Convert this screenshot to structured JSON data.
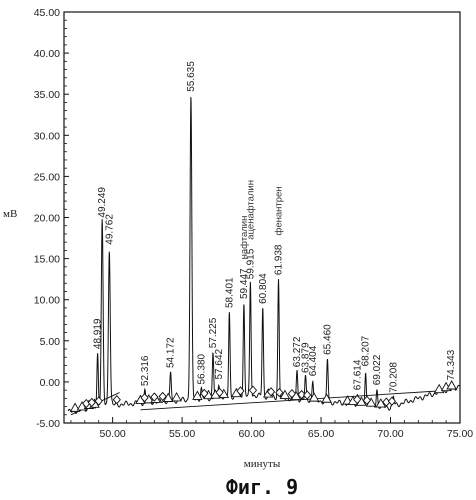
{
  "chart_data": {
    "type": "line",
    "ylabel": "мВ",
    "xlabel": "минуты",
    "caption": "Фиг. 9",
    "xlim": [
      46.5,
      75.0
    ],
    "ylim": [
      -5.0,
      45.0
    ],
    "x_ticks": [
      "50.00",
      "55.00",
      "60.00",
      "65.00",
      "70.00",
      "75.00"
    ],
    "y_ticks": [
      "45.00",
      "40.00",
      "35.00",
      "30.00",
      "25.00",
      "20.00",
      "15.00",
      "10.00",
      "5.00",
      "0.00",
      "-5.00"
    ],
    "x_tick_values": [
      50,
      55,
      60,
      65,
      70,
      75
    ],
    "y_tick_values": [
      45,
      40,
      35,
      30,
      25,
      20,
      15,
      10,
      5,
      0,
      -5
    ],
    "peaks": [
      {
        "t": 48.919,
        "h": 3.5,
        "label": "48.919"
      },
      {
        "t": 49.249,
        "h": 19.5,
        "label": "49.249"
      },
      {
        "t": 49.762,
        "h": 16.2,
        "label": "49.762"
      },
      {
        "t": 52.316,
        "h": -1.0,
        "label": "52.316"
      },
      {
        "t": 54.172,
        "h": 1.2,
        "label": "54.172"
      },
      {
        "t": 55.635,
        "h": 34.8,
        "label": "55.635"
      },
      {
        "t": 56.38,
        "h": -0.8,
        "label": "56.380"
      },
      {
        "t": 57.225,
        "h": 3.6,
        "label": "57.225"
      },
      {
        "t": 57.642,
        "h": -0.2,
        "label": "57.642"
      },
      {
        "t": 58.401,
        "h": 8.5,
        "label": "58.401"
      },
      {
        "t": 59.447,
        "h": 9.6,
        "label": "59.447",
        "compound": "нафталин"
      },
      {
        "t": 59.915,
        "h": 12.0,
        "label": "59.915",
        "compound": "аценафталин"
      },
      {
        "t": 60.804,
        "h": 9.0,
        "label": "60.804"
      },
      {
        "t": 61.938,
        "h": 12.5,
        "label": "61.938",
        "compound": "фенантрен"
      },
      {
        "t": 63.272,
        "h": 1.3,
        "label": "63.272"
      },
      {
        "t": 63.879,
        "h": 0.6,
        "label": "63.879"
      },
      {
        "t": 64.404,
        "h": 0.2,
        "label": "64.404"
      },
      {
        "t": 65.46,
        "h": 2.8,
        "label": "65.460"
      },
      {
        "t": 67.614,
        "h": -1.5,
        "label": "67.614"
      },
      {
        "t": 68.207,
        "h": 1.4,
        "label": "68.207"
      },
      {
        "t": 69.022,
        "h": -0.9,
        "label": "69.022"
      },
      {
        "t": 70.208,
        "h": -1.8,
        "label": "70.208"
      },
      {
        "t": 74.343,
        "h": -0.3,
        "label": "74.343"
      }
    ],
    "markers_triangle": [
      47.3,
      47.8,
      48.3,
      48.7,
      52.0,
      52.6,
      53.1,
      54.0,
      54.6,
      56.1,
      56.9,
      57.4,
      58.0,
      58.9,
      61.2,
      62.4,
      63.2,
      64.5,
      65.4,
      66.9,
      67.3,
      67.9,
      68.6,
      69.3,
      73.5,
      74.0,
      74.4
    ],
    "markers_diamond": [
      48.1,
      48.5,
      49.0,
      50.3,
      52.3,
      53.0,
      53.6,
      56.6,
      57.7,
      59.2,
      60.1,
      61.4,
      62.0,
      62.9,
      63.6,
      64.0,
      67.6,
      68.3,
      69.7,
      70.1
    ]
  }
}
